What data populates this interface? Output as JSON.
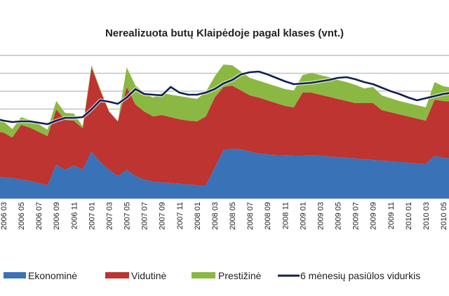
{
  "chart_data": {
    "type": "area",
    "stacked": true,
    "title": "Nerealizuota butų Klaipėdoje pagal klases (vnt.)",
    "xlabel": "",
    "ylabel": "",
    "grid": true,
    "legend_placement": "bottom",
    "x": [
      "2006 02",
      "2006 03",
      "2006 04",
      "2006 05",
      "2006 06",
      "2006 07",
      "2006 08",
      "2006 09",
      "2006 10",
      "2006 11",
      "2006 12",
      "2007 01",
      "2007 02",
      "2007 03",
      "2007 04",
      "2007 05",
      "2007 06",
      "2007 07",
      "2007 08",
      "2007 09",
      "2007 10",
      "2007 11",
      "2007 12",
      "2008 01",
      "2008 02",
      "2008 03",
      "2008 04",
      "2008 05",
      "2008 06",
      "2008 07",
      "2008 08",
      "2008 09",
      "2008 10",
      "2008 11",
      "2008 12",
      "2009 01",
      "2009 02",
      "2009 03",
      "2009 04",
      "2009 05",
      "2009 06",
      "2009 07",
      "2009 08",
      "2009 09",
      "2009 10",
      "2009 11",
      "2009 12",
      "2010 01",
      "2010 02",
      "2010 03",
      "2010 04",
      "2010 05",
      "2010 06"
    ],
    "tick_labels": [
      "2006 03",
      "2006 05",
      "2006 07",
      "2006 09",
      "2006 11",
      "2007 01",
      "2007 03",
      "2007 05",
      "2007 07",
      "2007 09",
      "2007 11",
      "2008 01",
      "2008 03",
      "2008 05",
      "2008 07",
      "2008 09",
      "2008 11",
      "2009 01",
      "2009 03",
      "2009 05",
      "2009 07",
      "2009 09",
      "2009 11",
      "2010 01",
      "2010 03",
      "2010 05"
    ],
    "series": [
      {
        "name": "Ekonominė",
        "kind": "area",
        "color": "#3a72b8",
        "values": [
          128,
          120,
          116,
          108,
          100,
          88,
          76,
          192,
          164,
          188,
          164,
          268,
          208,
          164,
          128,
          164,
          128,
          108,
          96,
          92,
          88,
          84,
          80,
          76,
          76,
          176,
          276,
          284,
          280,
          268,
          256,
          252,
          248,
          248,
          244,
          244,
          248,
          244,
          240,
          236,
          232,
          228,
          224,
          220,
          216,
          212,
          208,
          204,
          200,
          196,
          244,
          232,
          228
        ]
      },
      {
        "name": "Vidutinė",
        "kind": "area",
        "color": "#bd3430",
        "values": [
          256,
          256,
          232,
          312,
          304,
          292,
          280,
          316,
          284,
          256,
          236,
          480,
          408,
          332,
          312,
          472,
          408,
          388,
          372,
          384,
          376,
          368,
          364,
          364,
          392,
          400,
          360,
          360,
          336,
          320,
          320,
          308,
          296,
          280,
          276,
          360,
          356,
          348,
          340,
          332,
          324,
          316,
          320,
          324,
          288,
          280,
          272,
          264,
          256,
          248,
          320,
          324,
          324
        ]
      },
      {
        "name": "Prestižinė",
        "kind": "area",
        "color": "#8bb843",
        "values": [
          64,
          64,
          48,
          44,
          44,
          44,
          36,
          48,
          40,
          40,
          12,
          12,
          8,
          0,
          0,
          112,
          108,
          108,
          108,
          128,
          128,
          132,
          132,
          128,
          140,
          120,
          128,
          116,
          108,
          100,
          96,
          96,
          96,
          96,
          96,
          100,
          112,
          112,
          112,
          108,
          108,
          104,
          84,
          92,
          84,
          80,
          76,
          76,
          76,
          76,
          100,
          84,
          80
        ]
      },
      {
        "name": "6 mėnesių pasiūlos vidurkis",
        "kind": "line",
        "color": "#0f2150",
        "values": [
          456,
          444,
          436,
          440,
          440,
          432,
          424,
          444,
          460,
          460,
          464,
          508,
          560,
          552,
          540,
          576,
          624,
          596,
          592,
          588,
          636,
          604,
          592,
          592,
          604,
          624,
          656,
          676,
          708,
          720,
          724,
          708,
          688,
          668,
          652,
          656,
          660,
          668,
          676,
          688,
          692,
          680,
          664,
          652,
          632,
          612,
          596,
          576,
          560,
          572,
          584,
          596,
          604
        ]
      }
    ]
  }
}
